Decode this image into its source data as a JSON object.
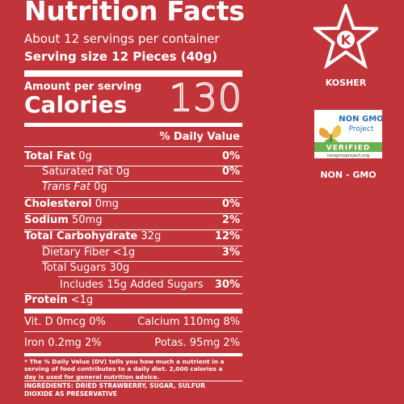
{
  "label": {
    "title": "Nutrition Facts",
    "servings_per_container": "About 12 servings per container",
    "serving_size": "Serving size 12 Pieces (40g)",
    "amount_per_serving": "Amount per serving",
    "calories_label": "Calories",
    "calories_value": "130",
    "daily_value_header": "% Daily Value",
    "nutrients": [
      {
        "name": "Total Fat",
        "amount": "0g",
        "pct": "0%"
      },
      {
        "name": "Saturated Fat",
        "amount": "0g",
        "pct": "0%"
      },
      {
        "name": "Trans Fat",
        "amount": "0g",
        "pct": ""
      },
      {
        "name": "Cholesterol",
        "amount": "0mg",
        "pct": "0%"
      },
      {
        "name": "Sodium",
        "amount": "50mg",
        "pct": "2%"
      },
      {
        "name": "Total Carbohydrate",
        "amount": "32g",
        "pct": "12%"
      },
      {
        "name": "Dietary Fiber",
        "amount": "<1g",
        "pct": "3%"
      },
      {
        "name": "Total Sugars",
        "amount": "30g",
        "pct": ""
      },
      {
        "name": "Includes 15g Added Sugars",
        "amount": "",
        "pct": "30%"
      },
      {
        "name": "Protein",
        "amount": "<1g",
        "pct": ""
      }
    ],
    "vitamins": {
      "vit_d": "Vit. D 0mcg 0%",
      "calcium": "Calcium 110mg 8%",
      "iron": "Iron 0.2mg 2%",
      "potassium": "Potas. 95mg 2%"
    },
    "footnote": "* The % Daily Value (DV) tells you how much a nutrient in a serving of food contributes to a daily diet. 2,000 calories a day is used for general nutrition advice.",
    "ingredients": "INGREDIENTS: DRIED STRAWBERRY, SUGAR, SULFUR DIOXIDE AS PRESERVATIVE"
  },
  "badges": {
    "kosher_letter": "K",
    "kosher_label": "KOSHER",
    "nongmo_top": "NON GMO",
    "nongmo_project": "Project",
    "nongmo_verified": "VERIFIED",
    "nongmo_url": "nongmoproject.org",
    "nongmo_label": "NON - GMO"
  },
  "colors": {
    "background": "#c0343a",
    "text": "#ffffff",
    "verified_green": "#6ab04c",
    "nongmo_blue": "#2a6db5"
  }
}
